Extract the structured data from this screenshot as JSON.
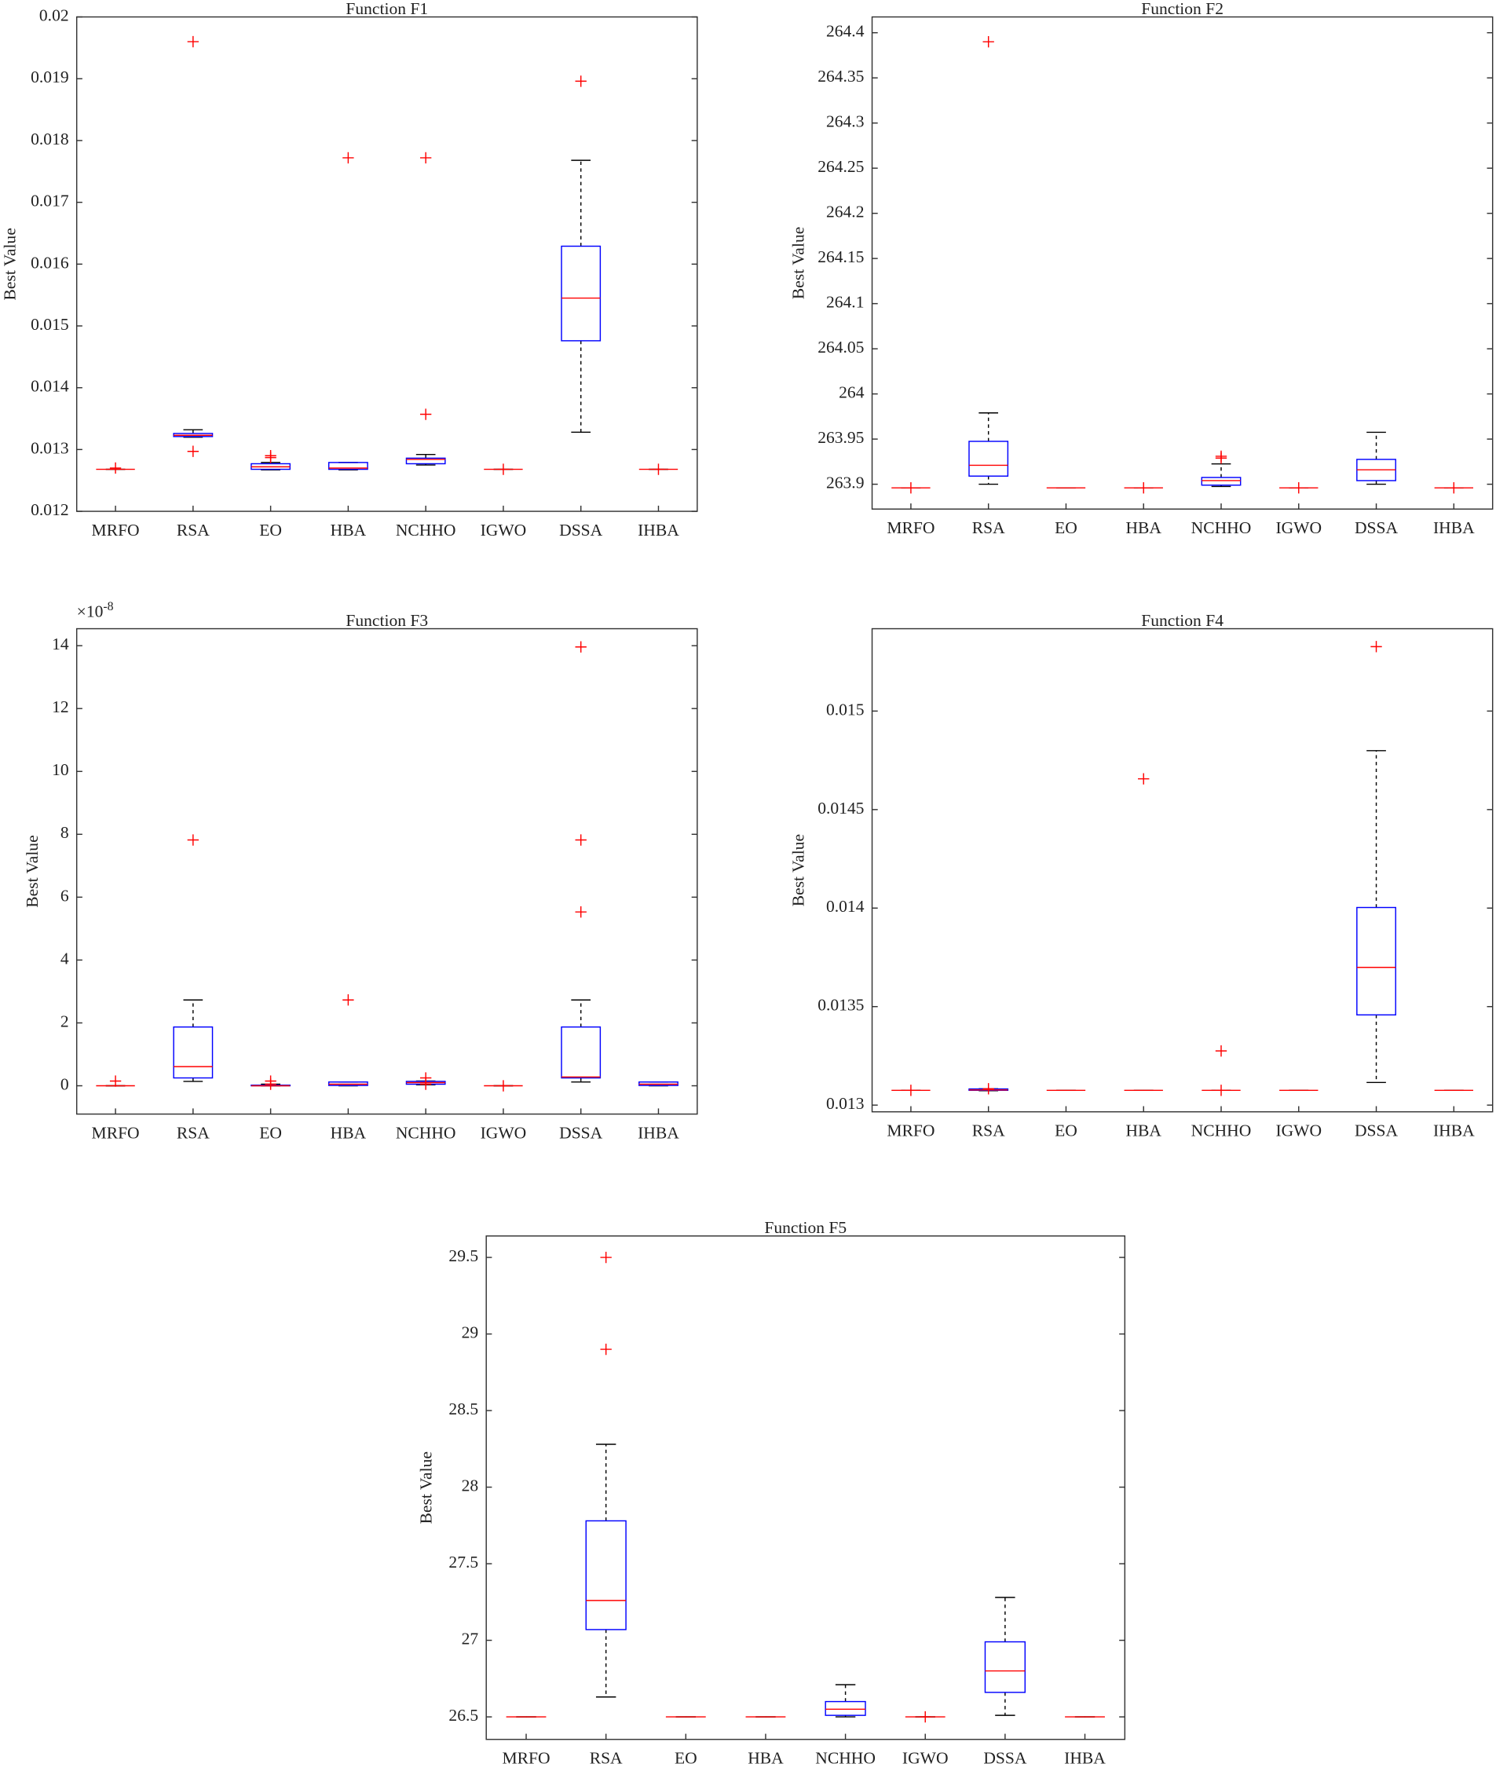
{
  "chart_data": [
    {
      "type": "box",
      "title": "Function F1",
      "ylabel": "Best Value",
      "categories": [
        "MRFO",
        "RSA",
        "EO",
        "HBA",
        "NCHHO",
        "IGWO",
        "DSSA",
        "IHBA"
      ],
      "ylim": [
        0.012,
        0.02
      ],
      "yticks": [
        0.012,
        0.013,
        0.014,
        0.015,
        0.016,
        0.017,
        0.018,
        0.019,
        0.02
      ],
      "box_color": "#0000ff",
      "median_color": "#ff0000",
      "whisker_color": "#000000",
      "outlier_color": "#ff0000",
      "boxes": [
        {
          "whislo": 0.01268,
          "q1": 0.01268,
          "med": 0.01268,
          "q3": 0.01268,
          "whishi": 0.01268,
          "outliers": [
            0.0127
          ]
        },
        {
          "whislo": 0.0132,
          "q1": 0.01321,
          "med": 0.01323,
          "q3": 0.01326,
          "whishi": 0.01332,
          "outliers": [
            0.0196,
            0.01297
          ]
        },
        {
          "whislo": 0.01267,
          "q1": 0.01268,
          "med": 0.01272,
          "q3": 0.01277,
          "whishi": 0.01279,
          "outliers": [
            0.0129,
            0.01287
          ]
        },
        {
          "whislo": 0.01267,
          "q1": 0.01268,
          "med": 0.0127,
          "q3": 0.01279,
          "whishi": 0.01279,
          "outliers": [
            0.01772
          ]
        },
        {
          "whislo": 0.01275,
          "q1": 0.01277,
          "med": 0.01284,
          "q3": 0.01286,
          "whishi": 0.01292,
          "outliers": [
            0.01357,
            0.01772
          ]
        },
        {
          "whislo": 0.01268,
          "q1": 0.01268,
          "med": 0.01268,
          "q3": 0.01268,
          "whishi": 0.01268,
          "outliers": [
            0.01268
          ]
        },
        {
          "whislo": 0.01328,
          "q1": 0.01476,
          "med": 0.01545,
          "q3": 0.01629,
          "whishi": 0.01768,
          "outliers": [
            0.01896
          ]
        },
        {
          "whislo": 0.01268,
          "q1": 0.01268,
          "med": 0.01268,
          "q3": 0.01268,
          "whishi": 0.01268,
          "outliers": [
            0.01268
          ]
        }
      ]
    },
    {
      "type": "box",
      "title": "Function F2",
      "ylabel": "Best Value",
      "categories": [
        "MRFO",
        "RSA",
        "EO",
        "HBA",
        "NCHHO",
        "IGWO",
        "DSSA",
        "IHBA"
      ],
      "ylim": [
        263.8725,
        264.4175
      ],
      "yticks": [
        263.9,
        263.95,
        264,
        264.05,
        264.1,
        264.15,
        264.2,
        264.25,
        264.3,
        264.35,
        264.4
      ],
      "box_color": "#0000ff",
      "median_color": "#ff0000",
      "whisker_color": "#000000",
      "outlier_color": "#ff0000",
      "boxes": [
        {
          "whislo": 263.896,
          "q1": 263.896,
          "med": 263.896,
          "q3": 263.896,
          "whishi": 263.896,
          "outliers": [
            263.896
          ]
        },
        {
          "whislo": 263.9,
          "q1": 263.909,
          "med": 263.921,
          "q3": 263.9475,
          "whishi": 263.979,
          "outliers": [
            264.39
          ]
        },
        {
          "whislo": 263.896,
          "q1": 263.896,
          "med": 263.896,
          "q3": 263.896,
          "whishi": 263.896,
          "outliers": []
        },
        {
          "whislo": 263.896,
          "q1": 263.896,
          "med": 263.896,
          "q3": 263.896,
          "whishi": 263.896,
          "outliers": [
            263.896
          ]
        },
        {
          "whislo": 263.8975,
          "q1": 263.899,
          "med": 263.904,
          "q3": 263.9075,
          "whishi": 263.9225,
          "outliers": [
            263.931,
            263.929
          ]
        },
        {
          "whislo": 263.896,
          "q1": 263.896,
          "med": 263.896,
          "q3": 263.896,
          "whishi": 263.896,
          "outliers": [
            263.896
          ]
        },
        {
          "whislo": 263.9,
          "q1": 263.904,
          "med": 263.916,
          "q3": 263.9275,
          "whishi": 263.9575,
          "outliers": []
        },
        {
          "whislo": 263.896,
          "q1": 263.896,
          "med": 263.896,
          "q3": 263.896,
          "whishi": 263.896,
          "outliers": [
            263.896
          ]
        }
      ]
    },
    {
      "type": "box",
      "title": "Function F3",
      "ylabel": "Best Value",
      "y_multiplier": {
        "base": "×10",
        "exponent": "-8"
      },
      "categories": [
        "MRFO",
        "RSA",
        "EO",
        "HBA",
        "NCHHO",
        "IGWO",
        "DSSA",
        "IHBA"
      ],
      "ylim": [
        -0.9,
        14.54
      ],
      "yticks": [
        0,
        2,
        4,
        6,
        8,
        10,
        12,
        14
      ],
      "box_color": "#0000ff",
      "median_color": "#ff0000",
      "whisker_color": "#000000",
      "outlier_color": "#ff0000",
      "boxes": [
        {
          "whislo": 0,
          "q1": 0,
          "med": 0,
          "q3": 0,
          "whishi": 0,
          "outliers": [
            0.15
          ]
        },
        {
          "whislo": 0.14,
          "q1": 0.25,
          "med": 0.61,
          "q3": 1.87,
          "whishi": 2.73,
          "outliers": [
            7.82
          ]
        },
        {
          "whislo": 0,
          "q1": 0,
          "med": 0,
          "q3": 0.02,
          "whishi": 0.05,
          "outliers": [
            0.15,
            0.05
          ]
        },
        {
          "whislo": 0,
          "q1": 0.01,
          "med": 0.05,
          "q3": 0.12,
          "whishi": 0.12,
          "outliers": [
            2.73
          ]
        },
        {
          "whislo": 0.03,
          "q1": 0.05,
          "med": 0.1,
          "q3": 0.14,
          "whishi": 0.15,
          "outliers": [
            0.25,
            0.05
          ]
        },
        {
          "whislo": 0,
          "q1": 0,
          "med": 0,
          "q3": 0,
          "whishi": 0,
          "outliers": [
            0
          ]
        },
        {
          "whislo": 0.12,
          "q1": 0.25,
          "med": 0.28,
          "q3": 1.87,
          "whishi": 2.73,
          "outliers": [
            7.82,
            5.53,
            13.96
          ]
        },
        {
          "whislo": 0,
          "q1": 0.01,
          "med": 0.05,
          "q3": 0.12,
          "whishi": 0.12,
          "outliers": []
        }
      ]
    },
    {
      "type": "box",
      "title": "Function F4",
      "ylabel": "Best Value",
      "categories": [
        "MRFO",
        "RSA",
        "EO",
        "HBA",
        "NCHHO",
        "IGWO",
        "DSSA",
        "IHBA"
      ],
      "ylim": [
        0.012966,
        0.015418
      ],
      "yticks": [
        0.013,
        0.0135,
        0.014,
        0.0145,
        0.015
      ],
      "box_color": "#0000ff",
      "median_color": "#ff0000",
      "whisker_color": "#000000",
      "outlier_color": "#ff0000",
      "boxes": [
        {
          "whislo": 0.013075,
          "q1": 0.013075,
          "med": 0.013075,
          "q3": 0.013075,
          "whishi": 0.013075,
          "outliers": [
            0.013075
          ]
        },
        {
          "whislo": 0.013073,
          "q1": 0.013075,
          "med": 0.013077,
          "q3": 0.013082,
          "whishi": 0.013083,
          "outliers": [
            0.013083
          ]
        },
        {
          "whislo": 0.013075,
          "q1": 0.013075,
          "med": 0.013075,
          "q3": 0.013075,
          "whishi": 0.013075,
          "outliers": []
        },
        {
          "whislo": 0.013075,
          "q1": 0.013075,
          "med": 0.013075,
          "q3": 0.013075,
          "whishi": 0.013075,
          "outliers": [
            0.014656
          ]
        },
        {
          "whislo": 0.013075,
          "q1": 0.013075,
          "med": 0.013075,
          "q3": 0.013075,
          "whishi": 0.013075,
          "outliers": [
            0.013075,
            0.013275
          ]
        },
        {
          "whislo": 0.013075,
          "q1": 0.013075,
          "med": 0.013075,
          "q3": 0.013075,
          "whishi": 0.013075,
          "outliers": []
        },
        {
          "whislo": 0.013115,
          "q1": 0.013458,
          "med": 0.013699,
          "q3": 0.014003,
          "whishi": 0.014799,
          "outliers": [
            0.015327
          ]
        },
        {
          "whislo": 0.013075,
          "q1": 0.013075,
          "med": 0.013075,
          "q3": 0.013075,
          "whishi": 0.013075,
          "outliers": []
        }
      ]
    },
    {
      "type": "box",
      "title": "Function F5",
      "ylabel": "Best Value",
      "categories": [
        "MRFO",
        "RSA",
        "EO",
        "HBA",
        "NCHHO",
        "IGWO",
        "DSSA",
        "IHBA"
      ],
      "ylim": [
        26.353,
        29.64
      ],
      "yticks": [
        26.5,
        27,
        27.5,
        28,
        28.5,
        29,
        29.5
      ],
      "box_color": "#0000ff",
      "median_color": "#ff0000",
      "whisker_color": "#000000",
      "outlier_color": "#ff0000",
      "boxes": [
        {
          "whislo": 26.5,
          "q1": 26.5,
          "med": 26.5,
          "q3": 26.5,
          "whishi": 26.5,
          "outliers": []
        },
        {
          "whislo": 26.63,
          "q1": 27.07,
          "med": 27.26,
          "q3": 27.78,
          "whishi": 28.28,
          "outliers": [
            29.5,
            28.9
          ]
        },
        {
          "whislo": 26.5,
          "q1": 26.5,
          "med": 26.5,
          "q3": 26.5,
          "whishi": 26.5,
          "outliers": []
        },
        {
          "whislo": 26.5,
          "q1": 26.5,
          "med": 26.5,
          "q3": 26.5,
          "whishi": 26.5,
          "outliers": []
        },
        {
          "whislo": 26.5,
          "q1": 26.51,
          "med": 26.55,
          "q3": 26.6,
          "whishi": 26.71,
          "outliers": []
        },
        {
          "whislo": 26.5,
          "q1": 26.5,
          "med": 26.5,
          "q3": 26.5,
          "whishi": 26.5,
          "outliers": [
            26.5
          ]
        },
        {
          "whislo": 26.51,
          "q1": 26.66,
          "med": 26.8,
          "q3": 26.99,
          "whishi": 27.28,
          "outliers": []
        },
        {
          "whislo": 26.5,
          "q1": 26.5,
          "med": 26.5,
          "q3": 26.5,
          "whishi": 26.5,
          "outliers": []
        }
      ]
    }
  ]
}
